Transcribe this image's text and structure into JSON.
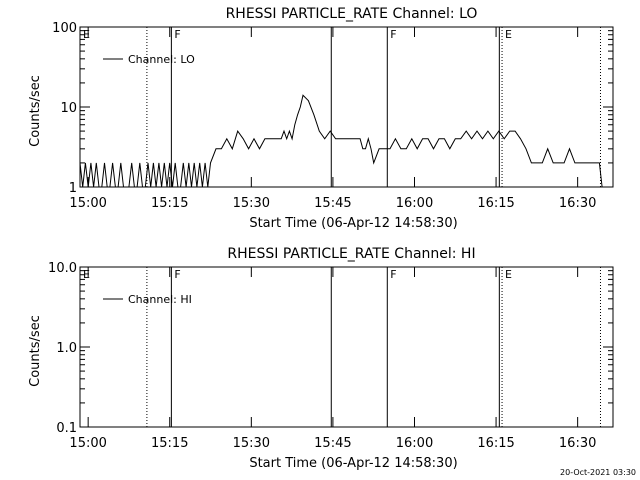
{
  "footer": {
    "timestamp": "20-Oct-2021 03:30"
  },
  "chart_data": [
    {
      "type": "line",
      "title": "RHESSI PARTICLE_RATE Channel: LO",
      "xlabel": "Start Time (06-Apr-12 14:58:30)",
      "ylabel": "Counts/sec",
      "x_tick_labels": [
        "15:00",
        "15:15",
        "15:30",
        "15:45",
        "16:00",
        "16:15",
        "16:30"
      ],
      "x_tick_minutes": [
        1.5,
        16.5,
        31.5,
        46.5,
        61.5,
        76.5,
        91.5
      ],
      "xlim_minutes": [
        0,
        98
      ],
      "y_scale": "log",
      "ylim": [
        1,
        100
      ],
      "y_tick_labels": [
        "1",
        "10",
        "100"
      ],
      "y_tick_values": [
        1,
        10,
        100
      ],
      "legend": {
        "entries": [
          "Channel: LO"
        ],
        "position": "top-left"
      },
      "markers": [
        {
          "label": "E",
          "minute": 0,
          "style": "none"
        },
        {
          "label": "F",
          "minute": 16.8,
          "style": "solid"
        },
        {
          "label": "",
          "minute": 46.2,
          "style": "solid"
        },
        {
          "label": "F",
          "minute": 56.5,
          "style": "solid"
        },
        {
          "label": "",
          "minute": 77.1,
          "style": "solid"
        },
        {
          "label": "E",
          "minute": 77.6,
          "style": "dotted"
        },
        {
          "label": "",
          "minute": 12.3,
          "style": "dotted"
        },
        {
          "label": "",
          "minute": 95.7,
          "style": "dotted"
        }
      ],
      "series": [
        {
          "name": "Channel: LO",
          "x": [
            0,
            0.5,
            1,
            1.5,
            2,
            2.5,
            3,
            3.5,
            4,
            4.5,
            5,
            5.5,
            6,
            6.5,
            7,
            7.5,
            8,
            8.5,
            9,
            9.5,
            10,
            10.5,
            11,
            11.5,
            12,
            12.5,
            13,
            13.5,
            14,
            14.5,
            15,
            15.5,
            16,
            16.5,
            17,
            17.5,
            18,
            18.5,
            19,
            19.5,
            20,
            20.5,
            21,
            21.5,
            22,
            22.5,
            23,
            23.5,
            24,
            25,
            26,
            27,
            28,
            29,
            30,
            31,
            32,
            33,
            34,
            34.5,
            35,
            35.5,
            36,
            36.5,
            37,
            37.5,
            38,
            38.5,
            39,
            39.5,
            40,
            40.5,
            41,
            42,
            43,
            44,
            45,
            46,
            47,
            48,
            49,
            50,
            51,
            51.5,
            52,
            52.5,
            53,
            53.5,
            54,
            55,
            56,
            57,
            58,
            59,
            60,
            61,
            62,
            63,
            64,
            65,
            66,
            67,
            68,
            69,
            70,
            71,
            72,
            73,
            74,
            75,
            76,
            77,
            78,
            79,
            80,
            81,
            82,
            83,
            84,
            85,
            86,
            87,
            88,
            89,
            90,
            91,
            92,
            93,
            94,
            95,
            95.5,
            96
          ],
          "y": [
            2,
            1,
            2,
            1,
            2,
            1,
            2,
            1,
            1,
            2,
            1,
            1,
            2,
            1,
            1,
            2,
            1,
            1,
            1,
            2,
            1,
            1,
            2,
            1,
            1,
            2,
            1,
            2,
            1,
            2,
            1,
            2,
            1,
            2,
            1,
            2,
            1,
            1,
            2,
            1,
            2,
            1,
            2,
            1,
            2,
            1,
            2,
            1,
            2,
            3,
            3,
            4,
            3,
            5,
            4,
            3,
            4,
            3,
            4,
            4,
            4,
            4,
            4,
            4,
            4,
            5,
            4,
            5,
            4,
            6,
            8,
            10,
            14,
            12,
            8,
            5,
            4,
            5,
            4,
            4,
            4,
            4,
            4,
            4,
            3,
            3,
            4,
            3,
            2,
            3,
            3,
            3,
            4,
            3,
            3,
            4,
            3,
            4,
            4,
            3,
            4,
            4,
            3,
            4,
            4,
            5,
            4,
            5,
            4,
            5,
            4,
            5,
            4,
            5,
            5,
            4,
            3,
            2,
            2,
            2,
            3,
            2,
            2,
            2,
            3,
            2,
            2,
            2,
            2,
            2,
            2,
            1
          ]
        }
      ]
    },
    {
      "type": "line",
      "title": "RHESSI PARTICLE_RATE Channel: HI",
      "xlabel": "Start Time (06-Apr-12 14:58:30)",
      "ylabel": "Counts/sec",
      "x_tick_labels": [
        "15:00",
        "15:15",
        "15:30",
        "15:45",
        "16:00",
        "16:15",
        "16:30"
      ],
      "x_tick_minutes": [
        1.5,
        16.5,
        31.5,
        46.5,
        61.5,
        76.5,
        91.5
      ],
      "xlim_minutes": [
        0,
        98
      ],
      "y_scale": "log",
      "ylim": [
        0.1,
        10
      ],
      "y_tick_labels": [
        "0.1",
        "1.0",
        "10.0"
      ],
      "y_tick_values": [
        0.1,
        1,
        10
      ],
      "legend": {
        "entries": [
          "Channel: HI"
        ],
        "position": "top-left"
      },
      "markers": [
        {
          "label": "E",
          "minute": 0,
          "style": "none"
        },
        {
          "label": "F",
          "minute": 16.8,
          "style": "solid"
        },
        {
          "label": "",
          "minute": 46.2,
          "style": "solid"
        },
        {
          "label": "F",
          "minute": 56.5,
          "style": "solid"
        },
        {
          "label": "",
          "minute": 77.1,
          "style": "solid"
        },
        {
          "label": "E",
          "minute": 77.6,
          "style": "dotted"
        },
        {
          "label": "",
          "minute": 12.3,
          "style": "dotted"
        },
        {
          "label": "",
          "minute": 95.7,
          "style": "dotted"
        }
      ],
      "series": [
        {
          "name": "Channel: HI",
          "x": [],
          "y": []
        }
      ]
    }
  ]
}
